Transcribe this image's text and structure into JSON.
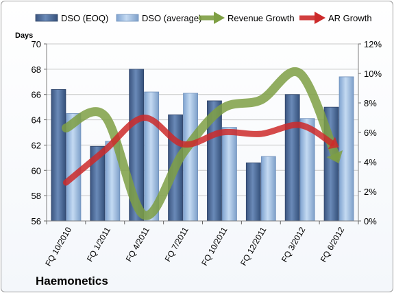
{
  "company": "Haemonetics",
  "chart_data": {
    "type": "bar",
    "categories": [
      "FQ 10/2010",
      "FQ 1/2011",
      "FQ 4/2011",
      "FQ 7/2011",
      "FQ 10/2011",
      "FQ 12/2011",
      "FQ 3/2012",
      "FQ 6/2012"
    ],
    "ylabel": "Days",
    "ylim": [
      56,
      70
    ],
    "yticks": [
      56,
      58,
      60,
      62,
      64,
      66,
      68,
      70
    ],
    "y2lim": [
      0,
      12
    ],
    "y2ticks": [
      "0%",
      "2%",
      "4%",
      "6%",
      "8%",
      "10%",
      "12%"
    ],
    "y2ticks_values": [
      0,
      2,
      4,
      6,
      8,
      10,
      12
    ],
    "grid": true,
    "legend_position": "top",
    "series": [
      {
        "name": "DSO (EOQ)",
        "kind": "bar",
        "axis": "left",
        "color": "#4f6c9a",
        "values": [
          66.4,
          61.9,
          68.0,
          64.4,
          65.5,
          60.6,
          66.0,
          65.0
        ]
      },
      {
        "name": "DSO (average)",
        "kind": "bar",
        "axis": "left",
        "color": "#9bbbe0",
        "values": [
          64.5,
          62.3,
          66.2,
          66.1,
          63.4,
          61.1,
          64.1,
          67.4
        ]
      },
      {
        "name": "Revenue Growth",
        "kind": "line",
        "axis": "right",
        "color": "#7e9f44",
        "values": [
          6.3,
          7.1,
          0.4,
          4.6,
          7.6,
          8.2,
          10.0,
          3.9
        ]
      },
      {
        "name": "AR Growth",
        "kind": "line",
        "axis": "right",
        "color": "#cc2a2a",
        "values": [
          2.6,
          4.8,
          7.0,
          5.2,
          6.0,
          5.9,
          6.5,
          5.0
        ]
      }
    ]
  }
}
